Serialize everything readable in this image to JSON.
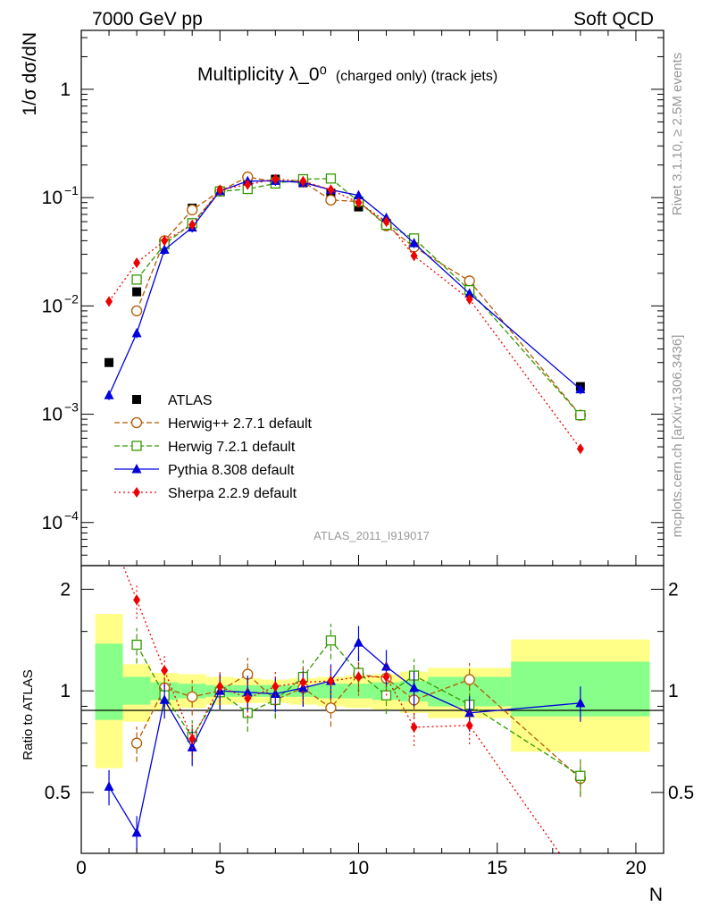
{
  "header": {
    "left": "7000 GeV pp",
    "right": "Soft QCD"
  },
  "side_labels": {
    "top": "Rivet 3.1.10, ≥ 2.5M events",
    "bottom": "mcplots.cern.ch [arXiv:1306.3436]"
  },
  "analysis_id": "ATLAS_2011_I919017",
  "colors": {
    "atlas": "#000000",
    "herwigpp": "#b35900",
    "herwig7": "#339900",
    "pythia": "#0000dd",
    "sherpa": "#ee0000",
    "band_outer": "#ffff88",
    "band_inner": "#88ff88"
  },
  "chart_data": [
    {
      "panel": "main",
      "type": "line",
      "title": "Multiplicity λ_0⁰",
      "title_suffix": "(charged only) (track jets)",
      "xlabel": "",
      "ylabel": "1/σ dσ/dN",
      "xlim": [
        0,
        21
      ],
      "ylim": [
        4e-05,
        3.5
      ],
      "yscale": "log",
      "y_ticks": [
        {
          "value": 0.0001,
          "base": "10",
          "exp": "−4"
        },
        {
          "value": 0.001,
          "base": "10",
          "exp": "−3"
        },
        {
          "value": 0.01,
          "base": "10",
          "exp": "−2"
        },
        {
          "value": 0.1,
          "base": "10",
          "exp": "−1"
        },
        {
          "value": 1,
          "base": "1",
          "exp": ""
        }
      ],
      "legend_position": "lower-left",
      "series": [
        {
          "name": "ATLAS",
          "key": "atlas",
          "marker": "square-filled",
          "x": [
            1,
            2,
            3,
            4,
            5,
            6,
            7,
            8,
            9,
            10,
            11,
            12,
            14,
            18
          ],
          "y": [
            0.003,
            0.0135,
            0.038,
            0.08,
            0.115,
            0.145,
            0.148,
            0.137,
            0.11,
            0.082,
            0.058,
            0.038,
            0.0155,
            0.0018
          ]
        },
        {
          "name": "Herwig++ 2.7.1 default",
          "key": "herwigpp",
          "marker": "circle-open",
          "dash": "6,3",
          "x": [
            2,
            3,
            4,
            5,
            6,
            7,
            8,
            9,
            10,
            11,
            12,
            14,
            18
          ],
          "y": [
            0.009,
            0.04,
            0.077,
            0.115,
            0.155,
            0.14,
            0.14,
            0.095,
            0.092,
            0.055,
            0.035,
            0.017,
            0.00098
          ]
        },
        {
          "name": "Herwig 7.2.1 default",
          "key": "herwig7",
          "marker": "square-open",
          "dash": "6,3",
          "x": [
            2,
            3,
            4,
            5,
            6,
            7,
            8,
            9,
            10,
            11,
            12,
            14,
            18
          ],
          "y": [
            0.0175,
            0.037,
            0.058,
            0.114,
            0.12,
            0.135,
            0.148,
            0.15,
            0.092,
            0.056,
            0.042,
            0.014,
            0.00098
          ]
        },
        {
          "name": "Pythia 8.308 default",
          "key": "pythia",
          "marker": "triangle-filled",
          "dash": "",
          "x": [
            1,
            2,
            3,
            4,
            5,
            6,
            7,
            8,
            9,
            10,
            11,
            12,
            14,
            18
          ],
          "y": [
            0.0015,
            0.0056,
            0.033,
            0.053,
            0.115,
            0.142,
            0.143,
            0.138,
            0.118,
            0.105,
            0.065,
            0.038,
            0.013,
            0.0017
          ]
        },
        {
          "name": "Sherpa 2.2.9 default",
          "key": "sherpa",
          "marker": "diamond-filled",
          "dash": "2,3",
          "x": [
            1,
            2,
            3,
            4,
            5,
            6,
            7,
            8,
            9,
            10,
            11,
            12,
            14,
            18
          ],
          "y": [
            0.011,
            0.025,
            0.04,
            0.056,
            0.118,
            0.132,
            0.148,
            0.142,
            0.118,
            0.09,
            0.06,
            0.029,
            0.0115,
            0.00048
          ]
        }
      ]
    },
    {
      "panel": "ratio",
      "type": "line",
      "xlabel": "N",
      "ylabel": "Ratio to ATLAS",
      "xlim": [
        0,
        21
      ],
      "ylim": [
        0.33,
        2.35
      ],
      "x_ticks": [
        0,
        5,
        10,
        15,
        20
      ],
      "y_ticks": [
        0.5,
        1,
        2
      ],
      "bands": [
        {
          "x0": 0.5,
          "x1": 1.5,
          "outer": [
            0.59,
            1.69
          ],
          "inner": [
            0.82,
            1.38
          ]
        },
        {
          "x0": 1.5,
          "x1": 2.5,
          "outer": [
            0.81,
            1.2
          ],
          "inner": [
            0.91,
            1.1
          ]
        },
        {
          "x0": 2.5,
          "x1": 3.5,
          "outer": [
            0.87,
            1.13
          ],
          "inner": [
            0.94,
            1.06
          ]
        },
        {
          "x0": 3.5,
          "x1": 4.5,
          "outer": [
            0.89,
            1.12
          ],
          "inner": [
            0.95,
            1.05
          ]
        },
        {
          "x0": 4.5,
          "x1": 5.5,
          "outer": [
            0.91,
            1.1
          ],
          "inner": [
            0.96,
            1.04
          ]
        },
        {
          "x0": 5.5,
          "x1": 6.5,
          "outer": [
            0.92,
            1.09
          ],
          "inner": [
            0.96,
            1.04
          ]
        },
        {
          "x0": 6.5,
          "x1": 7.5,
          "outer": [
            0.92,
            1.08
          ],
          "inner": [
            0.96,
            1.04
          ]
        },
        {
          "x0": 7.5,
          "x1": 8.5,
          "outer": [
            0.91,
            1.09
          ],
          "inner": [
            0.96,
            1.04
          ]
        },
        {
          "x0": 8.5,
          "x1": 9.5,
          "outer": [
            0.9,
            1.1
          ],
          "inner": [
            0.95,
            1.05
          ]
        },
        {
          "x0": 9.5,
          "x1": 10.5,
          "outer": [
            0.89,
            1.11
          ],
          "inner": [
            0.95,
            1.05
          ]
        },
        {
          "x0": 10.5,
          "x1": 11.5,
          "outer": [
            0.88,
            1.12
          ],
          "inner": [
            0.94,
            1.06
          ]
        },
        {
          "x0": 11.5,
          "x1": 12.5,
          "outer": [
            0.86,
            1.14
          ],
          "inner": [
            0.93,
            1.07
          ]
        },
        {
          "x0": 12.5,
          "x1": 15.5,
          "outer": [
            0.83,
            1.17
          ],
          "inner": [
            0.9,
            1.1
          ]
        },
        {
          "x0": 15.5,
          "x1": 20.5,
          "outer": [
            0.66,
            1.42
          ],
          "inner": [
            0.84,
            1.22
          ]
        }
      ],
      "series": [
        {
          "name": "Herwig++ 2.7.1 default",
          "key": "herwigpp",
          "marker": "circle-open",
          "dash": "6,3",
          "x": [
            2,
            3,
            4,
            5,
            6,
            7,
            8,
            9,
            10,
            11,
            12,
            14,
            18
          ],
          "y": [
            0.7,
            1.02,
            0.96,
            1.0,
            1.12,
            0.94,
            1.02,
            0.89,
            1.12,
            1.09,
            0.94,
            1.08,
            0.55
          ]
        },
        {
          "name": "Herwig 7.2.1 default",
          "key": "herwig7",
          "marker": "square-open",
          "dash": "6,3",
          "x": [
            2,
            3,
            4,
            5,
            6,
            7,
            8,
            9,
            10,
            11,
            12,
            14,
            18
          ],
          "y": [
            1.37,
            0.97,
            0.73,
            0.99,
            0.86,
            0.94,
            1.1,
            1.41,
            1.13,
            0.97,
            1.11,
            0.91,
            0.56
          ]
        },
        {
          "name": "Pythia 8.308 default",
          "key": "pythia",
          "marker": "triangle-filled",
          "dash": "",
          "x": [
            1,
            2,
            3,
            4,
            5,
            6,
            7,
            8,
            9,
            10,
            11,
            12,
            14,
            18
          ],
          "y": [
            0.52,
            0.38,
            0.94,
            0.68,
            1.0,
            0.99,
            0.98,
            1.02,
            1.07,
            1.39,
            1.18,
            1.02,
            0.86,
            0.92
          ]
        },
        {
          "name": "Sherpa 2.2.9 default",
          "key": "sherpa",
          "marker": "diamond-filled",
          "dash": "2,3",
          "x": [
            1,
            2,
            3,
            4,
            5,
            6,
            7,
            8,
            9,
            10,
            11,
            12,
            14,
            18
          ],
          "y": [
            3.0,
            1.86,
            1.15,
            0.72,
            1.03,
            0.95,
            1.03,
            1.06,
            1.07,
            1.1,
            1.1,
            0.78,
            0.79,
            0.27
          ]
        }
      ]
    }
  ]
}
